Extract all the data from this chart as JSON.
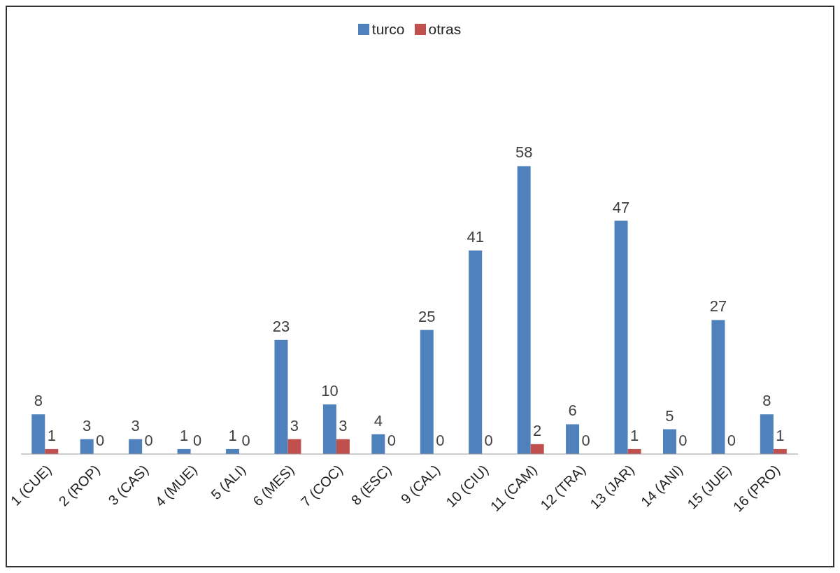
{
  "chart_data": {
    "type": "bar",
    "data_labels": true,
    "legend": "top",
    "grid": false,
    "categories": [
      "1 (CUE)",
      "2 (ROP)",
      "3 (CAS)",
      "4 (MUE)",
      "5 (ALI)",
      "6 (MES)",
      "7 (COC)",
      "8 (ESC)",
      "9 (CAL)",
      "10 (CIU)",
      "11 (CAM)",
      "12 (TRA)",
      "13 (JAR)",
      "14 (ANI)",
      "15 (JUE)",
      "16 (PRO)"
    ],
    "series": [
      {
        "name": "turco",
        "color": "#4f81bd",
        "values": [
          8,
          3,
          3,
          1,
          1,
          23,
          10,
          4,
          25,
          41,
          58,
          6,
          47,
          5,
          27,
          8
        ]
      },
      {
        "name": "otras",
        "color": "#c0504d",
        "values": [
          1,
          0,
          0,
          0,
          0,
          3,
          3,
          0,
          0,
          0,
          2,
          0,
          1,
          0,
          0,
          1
        ]
      }
    ]
  }
}
